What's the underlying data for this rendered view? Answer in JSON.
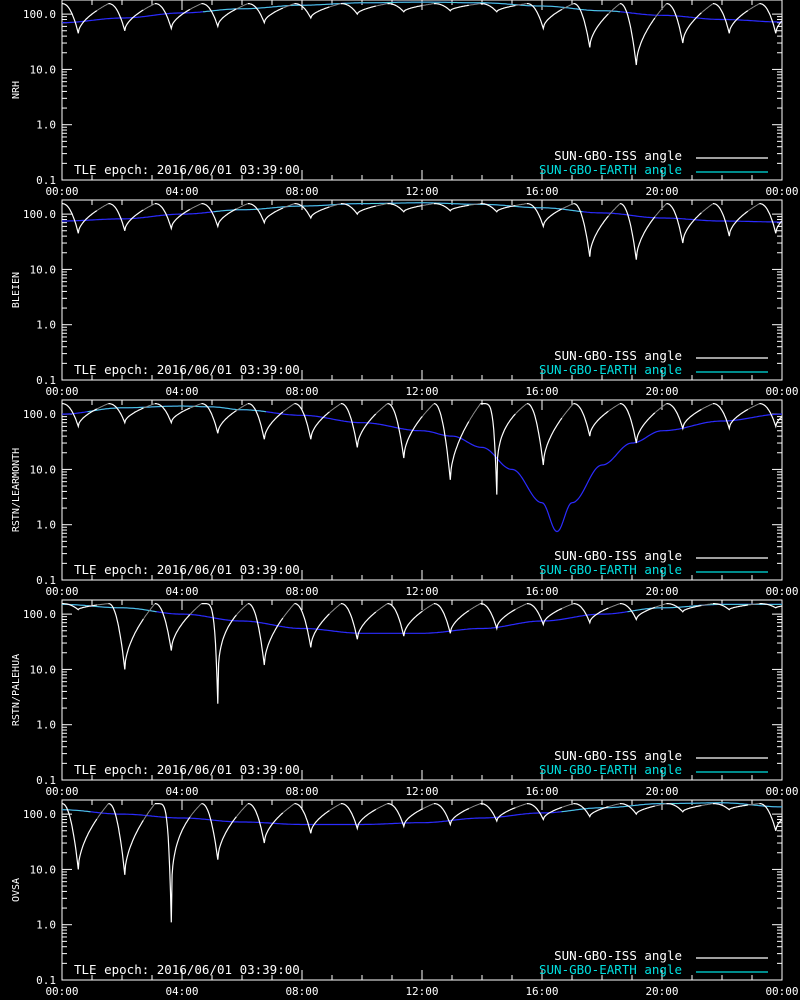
{
  "colors": {
    "background": "#000000",
    "axes": "#ffffff",
    "iss_angle": "#ffffff",
    "iss_angle_dim": "#8c8c8c",
    "earth_angle": "#2b2bff",
    "earth_angle_dim": "#4fd3d3",
    "legend_earth_text": "#00e0e0"
  },
  "chart_data": [
    {
      "type": "line",
      "ylabel": "NRH",
      "yscale": "log",
      "ylim": [
        0.1,
        180
      ],
      "yticks": [
        "0.1",
        "1.0",
        "10.0",
        "100.0"
      ],
      "xticks": [
        "00:00",
        "04:00",
        "08:00",
        "12:00",
        "16:00",
        "20:00",
        "00:00"
      ],
      "xlim_hours": [
        0,
        24
      ],
      "epoch_text": "TLE epoch: 2016/06/01 03:39:00",
      "legend": [
        {
          "label": "SUN-GBO-ISS angle"
        },
        {
          "label": "SUN-GBO-EARTH angle"
        }
      ],
      "earth_angle": {
        "x": [
          0,
          2,
          4,
          6,
          8,
          10,
          12,
          14,
          16,
          18,
          20,
          22,
          24
        ],
        "y": [
          70,
          85,
          105,
          125,
          145,
          160,
          165,
          160,
          140,
          115,
          95,
          80,
          72
        ]
      },
      "iss_angle": {
        "orbit_start_hours": [
          0.0,
          1.55,
          3.1,
          4.65,
          6.2,
          7.75,
          9.3,
          10.85,
          12.4,
          13.95,
          15.5,
          17.05,
          18.6,
          20.15,
          21.7,
          23.25
        ],
        "min_y": [
          45,
          50,
          55,
          60,
          70,
          85,
          100,
          110,
          115,
          110,
          55,
          25,
          12,
          30,
          45,
          45
        ]
      }
    },
    {
      "type": "line",
      "ylabel": "BLEIEN",
      "yscale": "log",
      "ylim": [
        0.1,
        180
      ],
      "yticks": [
        "0.1",
        "1.0",
        "10.0",
        "100.0"
      ],
      "xticks": [
        "00:00",
        "04:00",
        "08:00",
        "12:00",
        "16:00",
        "20:00",
        "00:00"
      ],
      "xlim_hours": [
        0,
        24
      ],
      "epoch_text": "TLE epoch: 2016/06/01 03:39:00",
      "legend": [
        {
          "label": "SUN-GBO-ISS angle"
        },
        {
          "label": "SUN-GBO-EARTH angle"
        }
      ],
      "earth_angle": {
        "x": [
          0,
          2,
          4,
          6,
          8,
          10,
          12,
          14,
          16,
          18,
          20,
          22,
          24
        ],
        "y": [
          75,
          82,
          100,
          120,
          140,
          155,
          160,
          150,
          130,
          105,
          85,
          75,
          72
        ]
      },
      "iss_angle": {
        "orbit_start_hours": [
          0.0,
          1.55,
          3.1,
          4.65,
          6.2,
          7.75,
          9.3,
          10.85,
          12.4,
          13.95,
          15.5,
          17.05,
          18.6,
          20.15,
          21.7,
          23.25
        ],
        "min_y": [
          45,
          50,
          55,
          60,
          70,
          85,
          100,
          110,
          115,
          110,
          60,
          17,
          15,
          30,
          40,
          45
        ]
      }
    },
    {
      "type": "line",
      "ylabel": "RSTN/LEARMONTH",
      "yscale": "log",
      "ylim": [
        0.1,
        180
      ],
      "yticks": [
        "0.1",
        "1.0",
        "10.0",
        "100.0"
      ],
      "xticks": [
        "00:00",
        "04:00",
        "08:00",
        "12:00",
        "16:00",
        "20:00",
        "00:00"
      ],
      "xlim_hours": [
        0,
        24
      ],
      "epoch_text": "TLE epoch: 2016/06/01 03:39:00",
      "legend": [
        {
          "label": "SUN-GBO-ISS angle"
        },
        {
          "label": "SUN-GBO-EARTH angle"
        }
      ],
      "earth_angle": {
        "x": [
          0,
          2,
          4,
          5,
          6,
          8,
          10,
          12,
          13,
          14,
          15,
          16,
          16.5,
          17,
          18,
          19,
          20,
          22,
          24
        ],
        "y": [
          100,
          130,
          140,
          135,
          120,
          95,
          70,
          50,
          40,
          25,
          10,
          2.5,
          0.75,
          2.5,
          12,
          30,
          50,
          75,
          100
        ]
      },
      "iss_angle": {
        "orbit_start_hours": [
          0.0,
          1.55,
          3.1,
          4.65,
          6.2,
          7.75,
          9.3,
          10.85,
          12.4,
          13.95,
          15.5,
          17.05,
          18.6,
          20.15,
          21.7,
          23.25
        ],
        "min_y": [
          60,
          70,
          70,
          45,
          35,
          35,
          25,
          16,
          6.5,
          3.5,
          12,
          40,
          30,
          55,
          55,
          60
        ]
      }
    },
    {
      "type": "line",
      "ylabel": "RSTN/PALEHUA",
      "yscale": "log",
      "ylim": [
        0.1,
        180
      ],
      "yticks": [
        "0.1",
        "1.0",
        "10.0",
        "100.0"
      ],
      "xticks": [
        "00:00",
        "04:00",
        "08:00",
        "12:00",
        "16:00",
        "20:00",
        "00:00"
      ],
      "xlim_hours": [
        0,
        24
      ],
      "epoch_text": "TLE epoch: 2016/06/01 03:39:00",
      "legend": [
        {
          "label": "SUN-GBO-ISS angle"
        },
        {
          "label": "SUN-GBO-EARTH angle"
        }
      ],
      "earth_angle": {
        "x": [
          0,
          2,
          4,
          6,
          8,
          10,
          12,
          14,
          16,
          18,
          20,
          22,
          24
        ],
        "y": [
          150,
          130,
          100,
          75,
          55,
          45,
          45,
          55,
          75,
          100,
          130,
          150,
          150
        ]
      },
      "iss_angle": {
        "orbit_start_hours": [
          0.0,
          1.55,
          3.1,
          4.65,
          6.2,
          7.75,
          9.3,
          10.85,
          12.4,
          13.95,
          15.5,
          17.05,
          18.6,
          20.15,
          21.7,
          23.25
        ],
        "min_y": [
          120,
          10,
          22,
          2.4,
          12,
          25,
          35,
          40,
          45,
          55,
          65,
          70,
          80,
          110,
          120,
          130
        ]
      }
    },
    {
      "type": "line",
      "ylabel": "OVSA",
      "yscale": "log",
      "ylim": [
        0.1,
        180
      ],
      "yticks": [
        "0.1",
        "1.0",
        "10.0",
        "100.0"
      ],
      "xticks": [
        "00:00",
        "04:00",
        "08:00",
        "12:00",
        "16:00",
        "20:00",
        "00:00"
      ],
      "xlim_hours": [
        0,
        24
      ],
      "epoch_text": "TLE epoch: 2016/06/01 03:39:00",
      "legend": [
        {
          "label": "SUN-GBO-ISS angle"
        },
        {
          "label": "SUN-GBO-EARTH angle"
        }
      ],
      "earth_angle": {
        "x": [
          0,
          2,
          4,
          6,
          8,
          10,
          12,
          14,
          16,
          18,
          20,
          22,
          24
        ],
        "y": [
          120,
          100,
          85,
          72,
          65,
          65,
          70,
          85,
          105,
          130,
          155,
          160,
          135
        ]
      },
      "iss_angle": {
        "orbit_start_hours": [
          0.0,
          1.55,
          3.1,
          4.65,
          6.2,
          7.75,
          9.3,
          10.85,
          12.4,
          13.95,
          15.5,
          17.05,
          18.6,
          20.15,
          21.7,
          23.25
        ],
        "min_y": [
          10,
          8,
          1.1,
          15,
          30,
          45,
          55,
          60,
          65,
          75,
          80,
          90,
          100,
          110,
          120,
          50
        ]
      }
    }
  ]
}
